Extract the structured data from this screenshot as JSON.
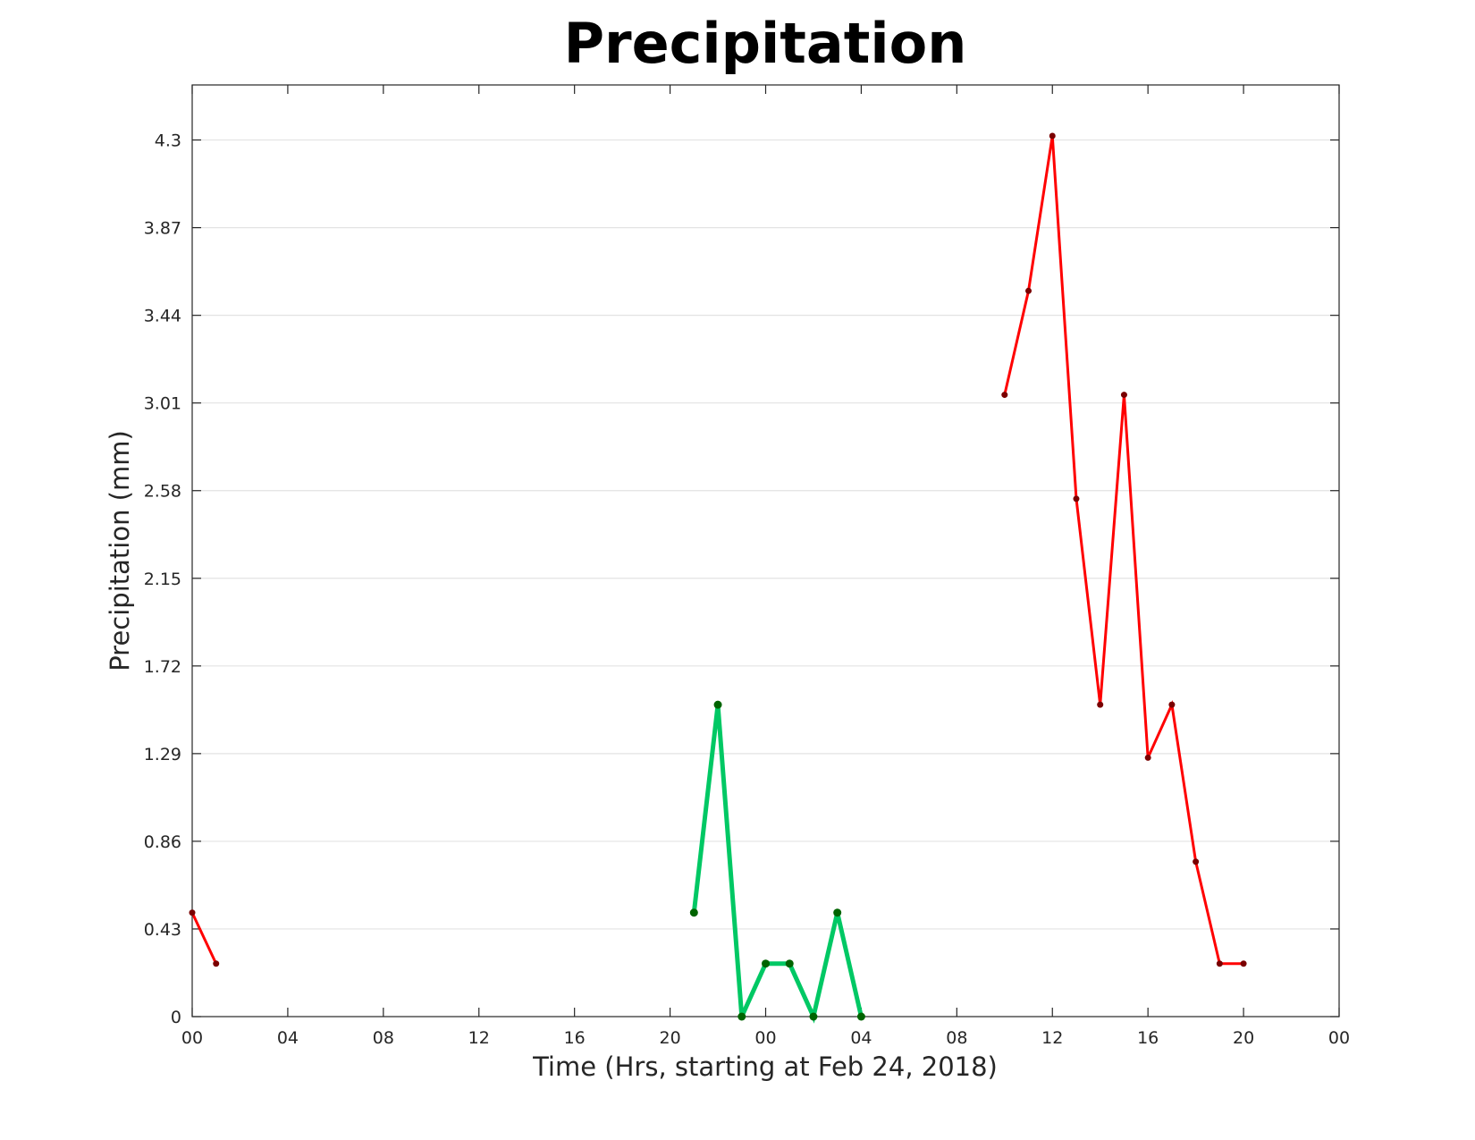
{
  "chart_data": {
    "type": "line",
    "title": "Precipitation",
    "xlabel": "Time (Hrs, starting at Feb 24, 2018)",
    "ylabel": "Precipitation (mm)",
    "x_unit": "hours",
    "xlim": [
      0,
      48
    ],
    "ylim": [
      0,
      4.57
    ],
    "x_ticks": [
      0,
      4,
      8,
      12,
      16,
      20,
      24,
      28,
      32,
      36,
      40,
      44,
      48
    ],
    "x_tick_labels": [
      "00",
      "04",
      "08",
      "12",
      "16",
      "20",
      "00",
      "04",
      "08",
      "12",
      "16",
      "20",
      "00"
    ],
    "y_ticks": [
      0,
      0.43,
      0.86,
      1.29,
      1.72,
      2.15,
      2.58,
      3.01,
      3.44,
      3.87,
      4.3
    ],
    "y_tick_labels": [
      "0",
      "0.43",
      "0.86",
      "1.29",
      "1.72",
      "2.15",
      "2.58",
      "3.01",
      "3.44",
      "3.87",
      "4.3"
    ],
    "grid": "horizontal",
    "legend": "none",
    "series": [
      {
        "color": "#ff0000",
        "marker_color": "#7a0000",
        "x": [
          0,
          1
        ],
        "y": [
          0.51,
          0.26
        ]
      },
      {
        "color": "#00c864",
        "marker_color": "#006400",
        "x": [
          21,
          22,
          23,
          24,
          25,
          26,
          27,
          28
        ],
        "y": [
          0.51,
          1.53,
          0.0,
          0.26,
          0.26,
          0.0,
          0.51,
          0.0
        ]
      },
      {
        "color": "#ff0000",
        "marker_color": "#7a0000",
        "x": [
          34,
          35,
          36,
          37,
          38,
          39,
          40,
          41,
          42,
          43,
          44
        ],
        "y": [
          3.05,
          3.56,
          4.32,
          2.54,
          1.53,
          3.05,
          1.27,
          1.53,
          0.76,
          0.26,
          0.26
        ]
      }
    ]
  }
}
